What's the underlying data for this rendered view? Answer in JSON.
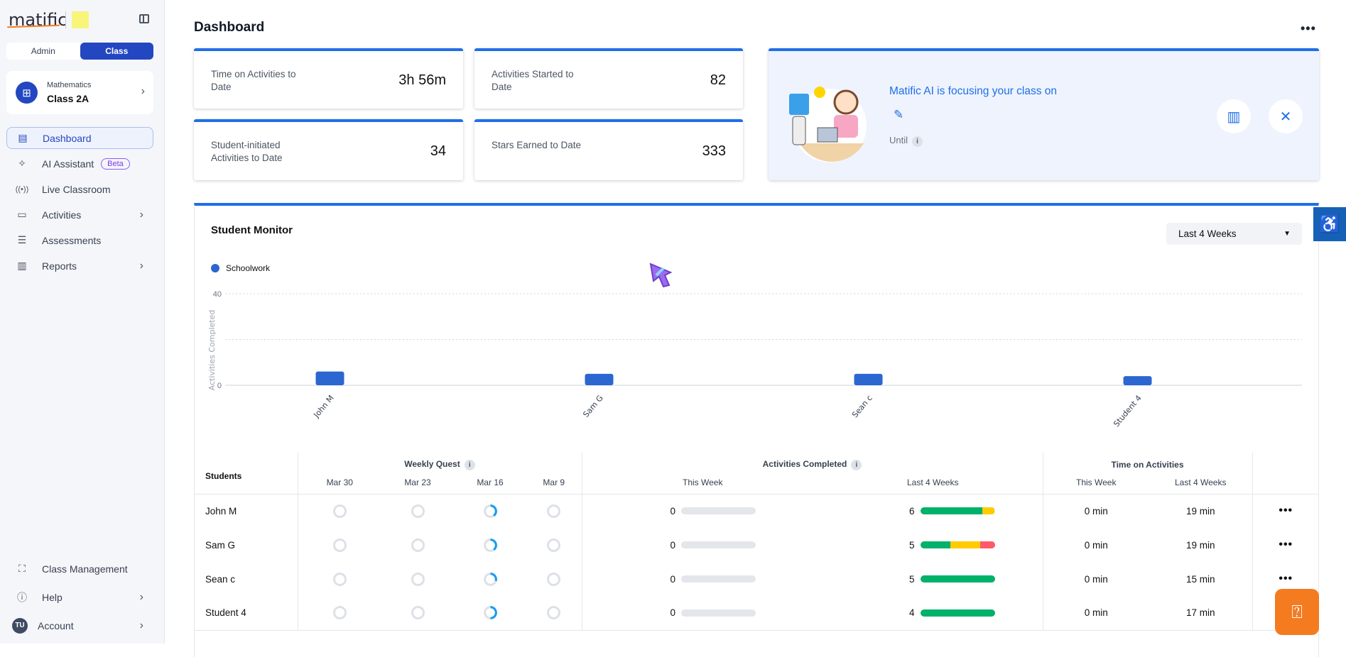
{
  "brand": {
    "logo": "matific"
  },
  "sidebar": {
    "toggle": {
      "admin": "Admin",
      "class": "Class"
    },
    "class_card": {
      "subject": "Mathematics",
      "name": "Class 2A"
    },
    "items": [
      {
        "label": "Dashboard",
        "icon": "layout-icon"
      },
      {
        "label": "AI Assistant",
        "icon": "sparkles-icon",
        "badge": "Beta"
      },
      {
        "label": "Live Classroom",
        "icon": "broadcast-icon"
      },
      {
        "label": "Activities",
        "icon": "laptop-icon"
      },
      {
        "label": "Assessments",
        "icon": "checklist-icon"
      },
      {
        "label": "Reports",
        "icon": "bar-chart-icon"
      }
    ],
    "bottom": [
      {
        "label": "Class Management",
        "icon": "classroom-icon"
      },
      {
        "label": "Help",
        "icon": "help-icon"
      },
      {
        "label": "Account",
        "avatar": "TU"
      }
    ]
  },
  "header": {
    "title": "Dashboard"
  },
  "stats": [
    {
      "label": "Time on Activities to Date",
      "value": "3h 56m"
    },
    {
      "label": "Activities Started to Date",
      "value": "82"
    },
    {
      "label": "Student-initiated Activities to Date",
      "value": "34"
    },
    {
      "label": "Stars Earned to Date",
      "value": "333"
    }
  ],
  "ai_card": {
    "title": "Matific AI is focusing your class on",
    "until": "Until"
  },
  "monitor": {
    "title": "Student Monitor",
    "range": "Last 4 Weeks"
  },
  "chart_data": {
    "type": "bar",
    "categories": [
      "John M",
      "Sam G",
      "Sean c",
      "Student 4"
    ],
    "series": [
      {
        "name": "Schoolwork",
        "values": [
          6,
          5,
          5,
          4
        ],
        "color": "#2c66d0"
      }
    ],
    "ylabel": "Activities Completed",
    "ylim": [
      0,
      40
    ],
    "yticks": [
      "0",
      "40"
    ],
    "grid": true,
    "legend": "top-left"
  },
  "table": {
    "headers": {
      "students": "Students",
      "weekly_quest": "Weekly Quest",
      "activities": "Activities Completed",
      "time": "Time on Activities"
    },
    "weeks": [
      "Mar 30",
      "Mar 23",
      "Mar 16",
      "Mar 9"
    ],
    "this_week": "This Week",
    "last_4": "Last 4 Weeks",
    "rows": [
      {
        "name": "John M",
        "quest_mar16": 0.4,
        "act_week": "0",
        "act_last4": "6",
        "segments": [
          [
            0.83,
            "#00b16a"
          ],
          [
            0.17,
            "#ffcc00"
          ]
        ],
        "time_week": "0 min",
        "time_last4": "19 min"
      },
      {
        "name": "Sam G",
        "quest_mar16": 0.4,
        "act_week": "0",
        "act_last4": "5",
        "segments": [
          [
            0.4,
            "#00b16a"
          ],
          [
            0.4,
            "#ffcc00"
          ],
          [
            0.2,
            "#ff5a6a"
          ]
        ],
        "time_week": "0 min",
        "time_last4": "19 min"
      },
      {
        "name": "Sean c",
        "quest_mar16": 0.3,
        "act_week": "0",
        "act_last4": "5",
        "segments": [
          [
            1,
            "#00b16a"
          ]
        ],
        "time_week": "0 min",
        "time_last4": "15 min"
      },
      {
        "name": "Student 4",
        "quest_mar16": 0.5,
        "act_week": "0",
        "act_last4": "4",
        "segments": [
          [
            1,
            "#00b16a"
          ]
        ],
        "time_week": "0 min",
        "time_last4": "17 min"
      }
    ]
  }
}
